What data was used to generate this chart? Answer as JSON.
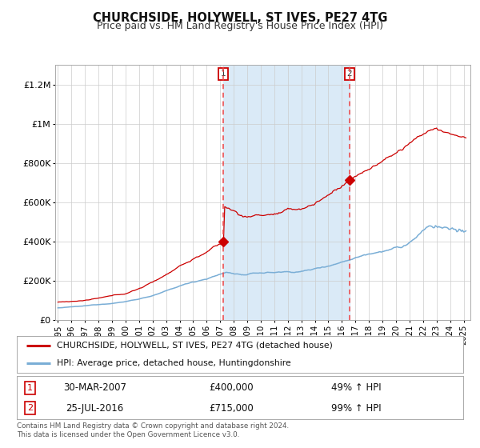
{
  "title": "CHURCHSIDE, HOLYWELL, ST IVES, PE27 4TG",
  "subtitle": "Price paid vs. HM Land Registry's House Price Index (HPI)",
  "legend_line1": "CHURCHSIDE, HOLYWELL, ST IVES, PE27 4TG (detached house)",
  "legend_line2": "HPI: Average price, detached house, Huntingdonshire",
  "footnote1": "Contains HM Land Registry data © Crown copyright and database right 2024.",
  "footnote2": "This data is licensed under the Open Government Licence v3.0.",
  "marker1_date": "30-MAR-2007",
  "marker1_price": "£400,000",
  "marker1_hpi": "49% ↑ HPI",
  "marker1_x": 2007.24,
  "marker1_y": 400000,
  "marker2_date": "25-JUL-2016",
  "marker2_price": "£715,000",
  "marker2_hpi": "99% ↑ HPI",
  "marker2_x": 2016.57,
  "marker2_y": 715000,
  "shade_start": 2007.24,
  "shade_end": 2016.57,
  "ylim": [
    0,
    1300000
  ],
  "xlim_start": 1994.8,
  "xlim_end": 2025.5,
  "bg_color": "#ffffff",
  "plot_bg": "#ffffff",
  "shade_color": "#daeaf7",
  "red_line_color": "#cc0000",
  "blue_line_color": "#7aaed6",
  "grid_color": "#cccccc",
  "dashed_line_color": "#ee4444",
  "marker_color": "#cc0000",
  "box_edge_color": "#cc0000",
  "title_fontsize": 10.5,
  "subtitle_fontsize": 9.0
}
